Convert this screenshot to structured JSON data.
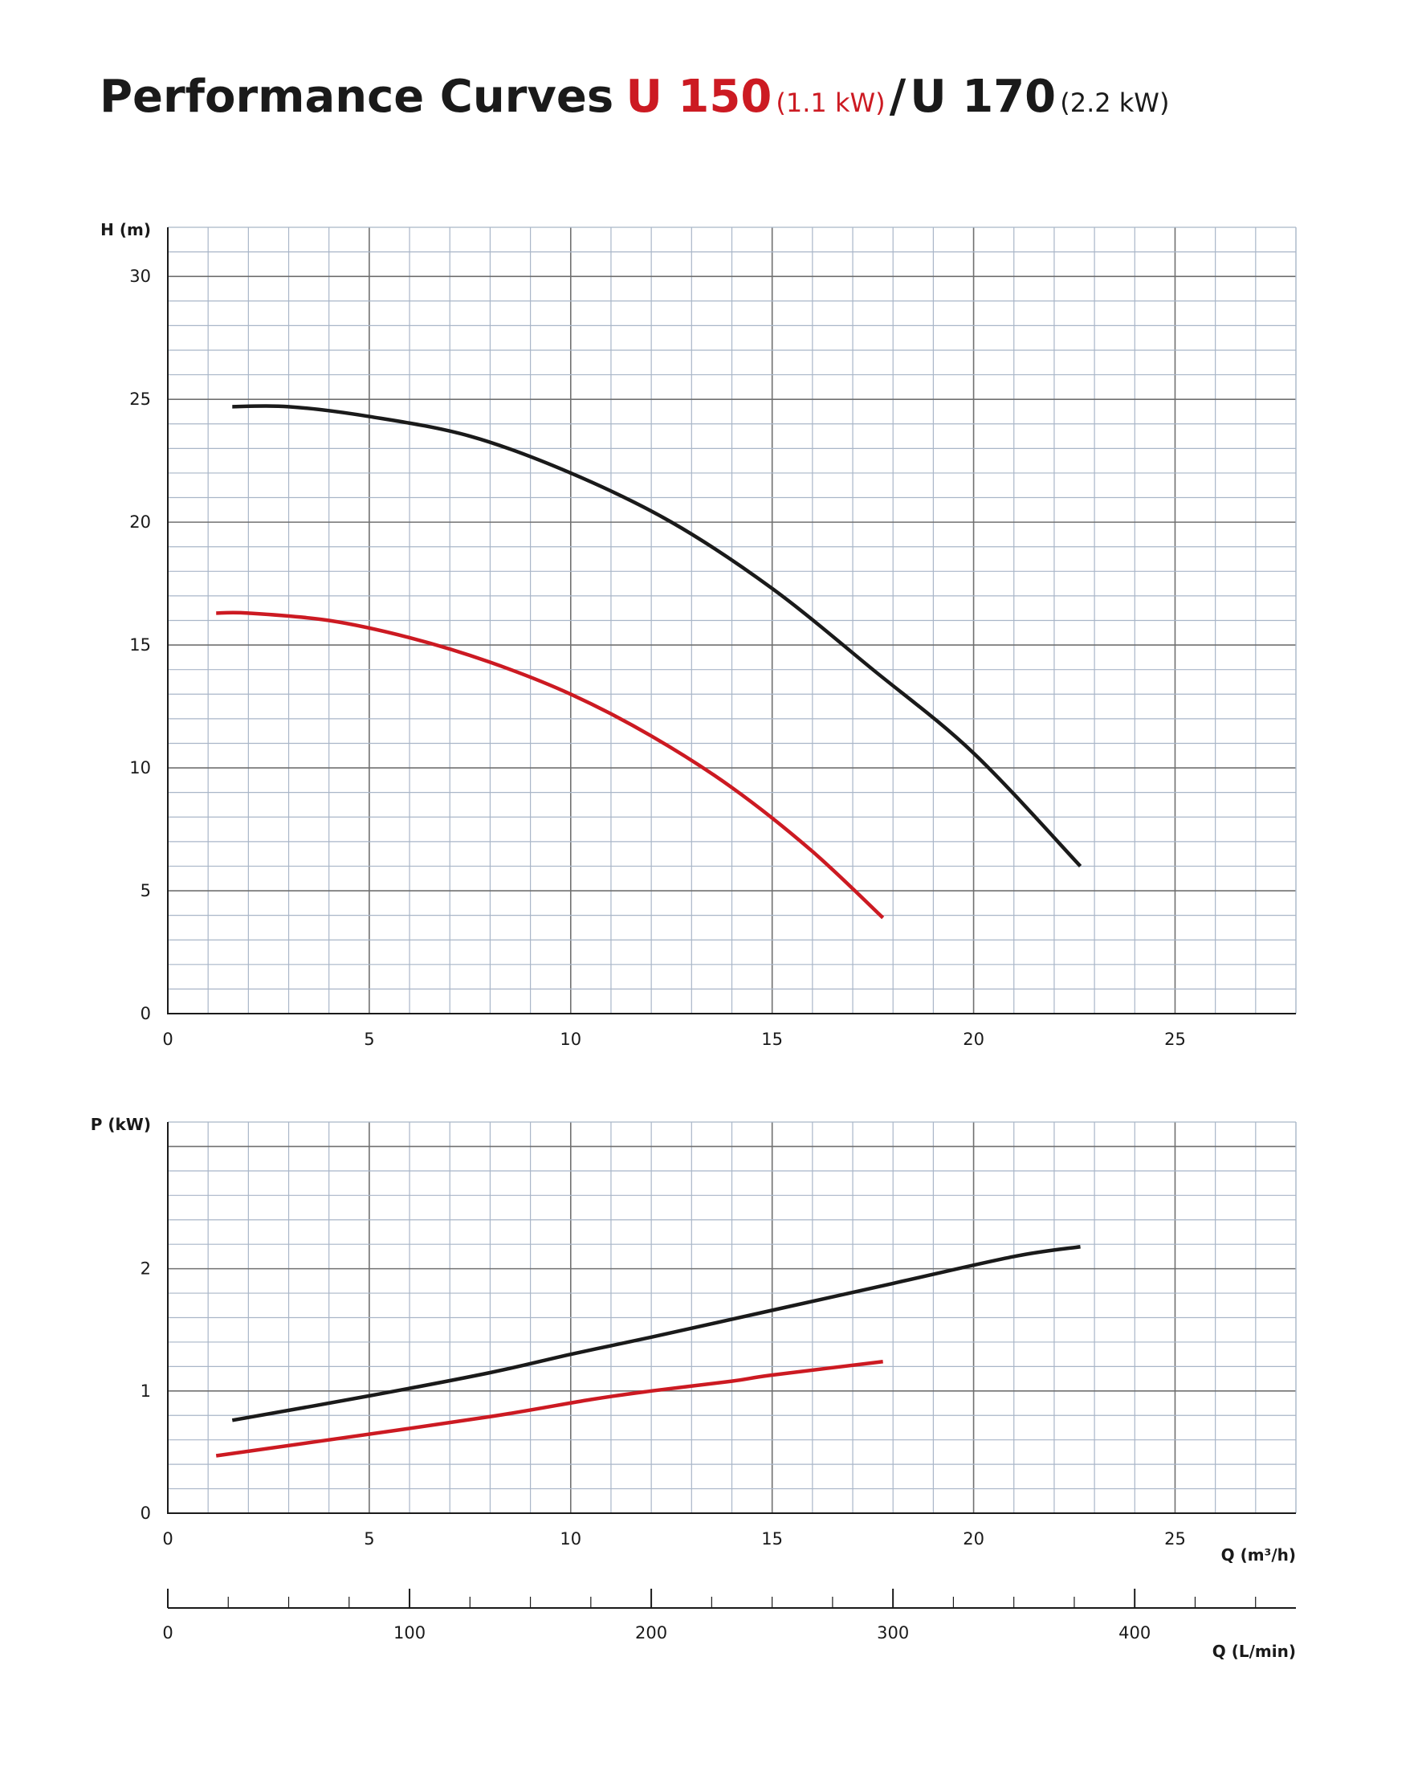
{
  "title": {
    "main": "Performance Curves",
    "model1": "U 150",
    "model1_power": "(1.1 kW)",
    "separator": "/",
    "model2": "U 170",
    "model2_power": "(2.2 kW)"
  },
  "colors": {
    "u150": "#cc1a22",
    "u170": "#1a1a1a",
    "grid": "#a9b6c8",
    "major_grid": "#707070"
  },
  "chart_data": [
    {
      "type": "line",
      "title": "",
      "ylabel": "H (m)",
      "xlabel": "",
      "xlim": [
        0,
        28
      ],
      "ylim": [
        0,
        32
      ],
      "xticks": [
        0,
        5,
        10,
        15,
        20,
        25
      ],
      "yticks": [
        0,
        5,
        10,
        15,
        20,
        25,
        30
      ],
      "series": [
        {
          "name": "U 150",
          "color": "#cc1a22",
          "x": [
            1.2,
            2.0,
            4.0,
            6.0,
            8.0,
            10.0,
            12.0,
            14.0,
            16.0,
            17.75
          ],
          "y": [
            16.3,
            16.3,
            16.0,
            15.3,
            14.3,
            13.0,
            11.3,
            9.2,
            6.6,
            3.9
          ]
        },
        {
          "name": "U 170",
          "color": "#1a1a1a",
          "x": [
            1.6,
            3.0,
            5.0,
            7.5,
            10.0,
            12.5,
            15.0,
            17.5,
            20.0,
            22.65
          ],
          "y": [
            24.7,
            24.7,
            24.3,
            23.5,
            22.0,
            20.0,
            17.3,
            14.0,
            10.6,
            6.0
          ]
        }
      ]
    },
    {
      "type": "line",
      "title": "",
      "ylabel": "P (kW)",
      "xlabel": "Q (m³/h)",
      "xlim": [
        0,
        28
      ],
      "ylim": [
        0,
        3.2
      ],
      "xticks": [
        0,
        5,
        10,
        15,
        20,
        25
      ],
      "yticks": [
        0,
        1,
        2
      ],
      "series": [
        {
          "name": "U 150",
          "color": "#cc1a22",
          "x": [
            1.2,
            4.0,
            8.0,
            10.5,
            12.0,
            14.0,
            15.0,
            17.75
          ],
          "y": [
            0.47,
            0.6,
            0.79,
            0.93,
            1.0,
            1.08,
            1.13,
            1.24
          ]
        },
        {
          "name": "U 170",
          "color": "#1a1a1a",
          "x": [
            1.6,
            5.0,
            8.0,
            10.0,
            12.0,
            15.0,
            18.0,
            21.0,
            22.65
          ],
          "y": [
            0.76,
            0.96,
            1.15,
            1.3,
            1.44,
            1.66,
            1.88,
            2.1,
            2.18
          ]
        }
      ]
    },
    {
      "type": "axis",
      "title": "",
      "xlabel": "Q (L/min)",
      "xlim": [
        0,
        466.7
      ],
      "xticks": [
        0,
        100,
        200,
        300,
        400
      ],
      "minor_step": 25
    }
  ]
}
